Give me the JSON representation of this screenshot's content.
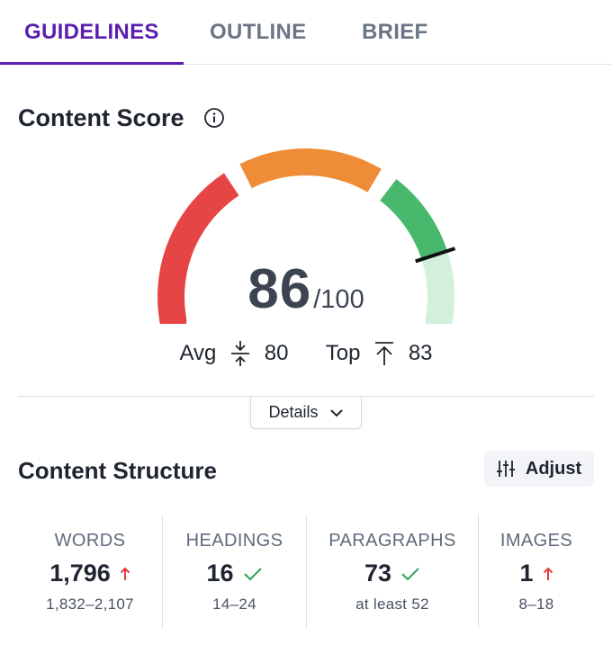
{
  "tabs": [
    {
      "label": "GUIDELINES",
      "active": true
    },
    {
      "label": "OUTLINE",
      "active": false
    },
    {
      "label": "BRIEF",
      "active": false
    }
  ],
  "content_score": {
    "title": "Content Score",
    "info_icon": "info-circle-icon",
    "score": "86",
    "max": "/100",
    "avg_label": "Avg",
    "avg_value": "80",
    "top_label": "Top",
    "top_value": "83",
    "gauge_colors": {
      "red": "#e64545",
      "orange": "#ef8c37",
      "green": "#47b86c",
      "pale_green": "#d3f0dd",
      "needle": "#111111"
    }
  },
  "details": {
    "label": "Details",
    "icon": "chevron-down-icon"
  },
  "content_structure": {
    "title": "Content Structure",
    "adjust_label": "Adjust",
    "adjust_icon": "sliders-icon",
    "metrics": [
      {
        "label": "WORDS",
        "value": "1,796",
        "status": "up-arrow",
        "range": "1,832–2,107"
      },
      {
        "label": "HEADINGS",
        "value": "16",
        "status": "check",
        "range": "14–24"
      },
      {
        "label": "PARAGRAPHS",
        "value": "73",
        "status": "check",
        "range": "at least 52"
      },
      {
        "label": "IMAGES",
        "value": "1",
        "status": "up-arrow",
        "range": "8–18"
      }
    ],
    "status_colors": {
      "up": "#e23b3b",
      "check": "#2fa35a"
    }
  }
}
